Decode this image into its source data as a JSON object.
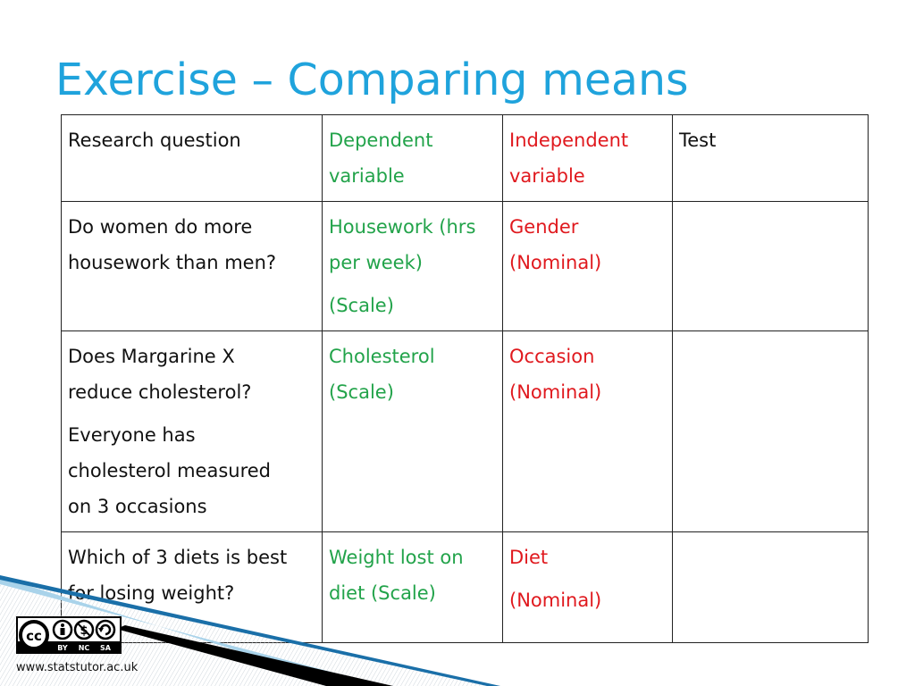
{
  "slide": {
    "title": "Exercise – Comparing means",
    "footer_url": "www.statstutor.ac.uk",
    "license": {
      "labels": [
        "BY",
        "NC",
        "SA"
      ],
      "icon": "creative-commons-by-nc-sa-icon"
    }
  },
  "table": {
    "headers": {
      "research_question": "Research question",
      "dependent_l1": "Dependent",
      "dependent_l2": "variable",
      "independent_l1": "Independent",
      "independent_l2": "variable",
      "test": "Test"
    },
    "rows": [
      {
        "question_lines": [
          "Do women do more",
          "housework than men?"
        ],
        "dependent_lines": [
          "Housework (hrs",
          "per week)",
          "(Scale)"
        ],
        "independent_lines": [
          "Gender",
          "(Nominal)"
        ],
        "test": ""
      },
      {
        "question_lines": [
          "Does Margarine X",
          "reduce cholesterol?",
          "Everyone has",
          "cholesterol measured",
          "on 3 occasions"
        ],
        "dependent_lines": [
          "Cholesterol",
          "(Scale)"
        ],
        "independent_lines": [
          "Occasion",
          "(Nominal)"
        ],
        "test": ""
      },
      {
        "question_lines": [
          "Which of 3 diets is best",
          "for losing weight?"
        ],
        "dependent_lines": [
          "Weight lost on",
          "diet (Scale)"
        ],
        "independent_lines": [
          "Diet",
          "(Nominal)"
        ],
        "test": ""
      }
    ]
  },
  "colors": {
    "title": "#1fa3dc",
    "dependent": "#22a34a",
    "independent": "#e0191e"
  }
}
